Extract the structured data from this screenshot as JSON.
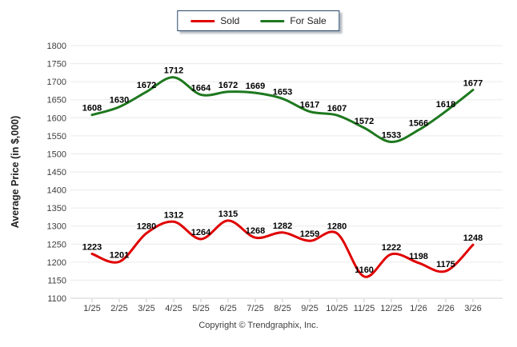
{
  "legend": {
    "items": [
      {
        "label": "Sold",
        "color": "#e00000"
      },
      {
        "label": "For Sale",
        "color": "#1e781e"
      }
    ]
  },
  "footer": {
    "copyright": "Copyright © Trendgraphix, Inc."
  },
  "chart_data": {
    "type": "line",
    "title": "",
    "xlabel": "",
    "ylabel": "Average Price (in $,000)",
    "x": [
      "1/25",
      "2/25",
      "3/25",
      "4/25",
      "5/25",
      "6/25",
      "7/25",
      "8/25",
      "9/25",
      "10/25",
      "11/25",
      "12/25",
      "1/26",
      "2/26",
      "3/26"
    ],
    "series": [
      {
        "name": "Sold",
        "color": "#e00000",
        "values": [
          1223,
          1201,
          1280,
          1312,
          1264,
          1315,
          1268,
          1282,
          1259,
          1280,
          1160,
          1222,
          1198,
          1175,
          1248
        ]
      },
      {
        "name": "For Sale",
        "color": "#1e781e",
        "values": [
          1608,
          1630,
          1672,
          1712,
          1664,
          1672,
          1669,
          1653,
          1617,
          1607,
          1572,
          1533,
          1566,
          1618,
          1677
        ]
      }
    ],
    "ylim": [
      1100,
      1800
    ],
    "ytick_step": 50,
    "grid": true,
    "smooth": true,
    "data_labels": true,
    "legend_position": "top-center",
    "colors": {
      "gridline": "#eaeaea",
      "axis_line": "#d2d2d2",
      "tick": "#c8c8c8",
      "tick_label": "#3d3d3d",
      "data_label": "#000000"
    }
  }
}
